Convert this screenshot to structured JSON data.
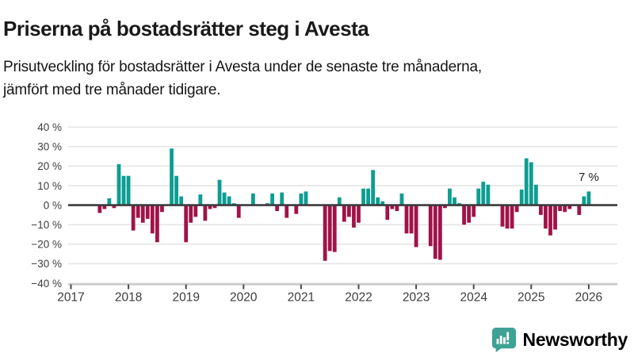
{
  "header": {
    "title": "Priserna på bostadsrätter steg i Avesta",
    "subtitle": "Prisutveckling för bostadsrätter i Avesta under de senaste tre månaderna, jämfört med tre månader tidigare.",
    "subtitle_lines": [
      "Prisutveckling för bostadsrätter i Avesta under de senaste tre månaderna,",
      "jämfört med tre månader tidigare."
    ]
  },
  "colors": {
    "positive": "#0d9d92",
    "negative": "#a01349",
    "grid": "#e4e4e4",
    "zero_line": "#3b3b3b",
    "axis_line": "#c4c4c4",
    "tick": "#4a4a4a",
    "text": "#3d3d3d",
    "annotation": "#222222",
    "brand": "#3ea294"
  },
  "chart_data": {
    "type": "bar",
    "title": "Prisutveckling för bostadsrätter i Avesta, 3 månader jämfört med 3 månader tidigare",
    "unit": "%",
    "ylim": [
      -40,
      40
    ],
    "grid": true,
    "positive_color": "#0d9d92",
    "negative_color": "#a01349",
    "yticks": [
      {
        "value": 40,
        "label": "40 %"
      },
      {
        "value": 30,
        "label": "30 %"
      },
      {
        "value": 20,
        "label": "20 %"
      },
      {
        "value": 10,
        "label": "10 %"
      },
      {
        "value": 0,
        "label": "0 %"
      },
      {
        "value": -10,
        "label": "−10 %"
      },
      {
        "value": -20,
        "label": "−20 %"
      },
      {
        "value": -30,
        "label": "−30 %"
      },
      {
        "value": -40,
        "label": "−40 %"
      }
    ],
    "xtick_labels": [
      "2017",
      "2018",
      "2019",
      "2020",
      "2021",
      "2022",
      "2023",
      "2024",
      "2025",
      "2026"
    ],
    "x": [
      "2017-07",
      "2017-08",
      "2017-09",
      "2017-10",
      "2017-11",
      "2017-12",
      "2018-01",
      "2018-02",
      "2018-03",
      "2018-04",
      "2018-05",
      "2018-06",
      "2018-07",
      "2018-08",
      "2018-09",
      "2018-10",
      "2018-11",
      "2018-12",
      "2019-01",
      "2019-02",
      "2019-03",
      "2019-04",
      "2019-05",
      "2019-06",
      "2019-07",
      "2019-08",
      "2019-09",
      "2019-10",
      "2019-11",
      "2019-12",
      "2020-01",
      "2020-02",
      "2020-03",
      "2020-04",
      "2020-05",
      "2020-06",
      "2020-07",
      "2020-08",
      "2020-09",
      "2020-10",
      "2020-11",
      "2020-12",
      "2021-01",
      "2021-02",
      "2021-03",
      "2021-04",
      "2021-05",
      "2021-06",
      "2021-07",
      "2021-08",
      "2021-09",
      "2021-10",
      "2021-11",
      "2021-12",
      "2022-01",
      "2022-02",
      "2022-03",
      "2022-04",
      "2022-05",
      "2022-06",
      "2022-07",
      "2022-08",
      "2022-09",
      "2022-10",
      "2022-11",
      "2022-12",
      "2023-01",
      "2023-02",
      "2023-03",
      "2023-04",
      "2023-05",
      "2023-06",
      "2023-07",
      "2023-08",
      "2023-09",
      "2023-10",
      "2023-11",
      "2023-12",
      "2024-01",
      "2024-02",
      "2024-03",
      "2024-04",
      "2024-05",
      "2024-06",
      "2024-07",
      "2024-08",
      "2024-09",
      "2024-10",
      "2024-11",
      "2024-12",
      "2025-01",
      "2025-02",
      "2025-03",
      "2025-04",
      "2025-05",
      "2025-06",
      "2025-07",
      "2025-08",
      "2025-09",
      "2025-10",
      "2025-11",
      "2025-12",
      "2026-01"
    ],
    "values": [
      -4,
      -2,
      3.5,
      -1.5,
      21,
      15,
      15,
      -13,
      -6.5,
      -9,
      -7,
      -14.5,
      -19,
      -3.5,
      0,
      29,
      15,
      4.5,
      -19,
      -9,
      -6,
      5.5,
      -8,
      -2,
      -1.5,
      13,
      6.5,
      4.5,
      1,
      -6.5,
      0,
      0,
      6,
      0,
      0,
      1,
      6,
      -3,
      6.5,
      -6.5,
      0,
      -4.5,
      6,
      7,
      0,
      0,
      0,
      -28.5,
      -23.5,
      -24,
      4,
      -8.5,
      -6,
      -11.5,
      -9,
      8.5,
      8.5,
      18,
      4,
      2,
      -7.5,
      -2,
      -3,
      6,
      -14.5,
      -14.5,
      -21.5,
      0,
      0,
      -21,
      -27.5,
      -28,
      -1.5,
      8.5,
      4,
      1,
      -10,
      -9,
      -6,
      8.5,
      12,
      10.5,
      0,
      0,
      -11,
      -12,
      -12,
      -3.5,
      8,
      24,
      22,
      10.5,
      -5,
      -12,
      -15.5,
      -12.5,
      -3,
      -3.5,
      -2,
      0,
      -5,
      4.5,
      7
    ],
    "annotation": {
      "text": "7 %",
      "index": 102,
      "value": 7
    }
  },
  "branding": {
    "name": "Newsworthy",
    "icon": "newsworthy-bar-chart-bubble-icon"
  }
}
